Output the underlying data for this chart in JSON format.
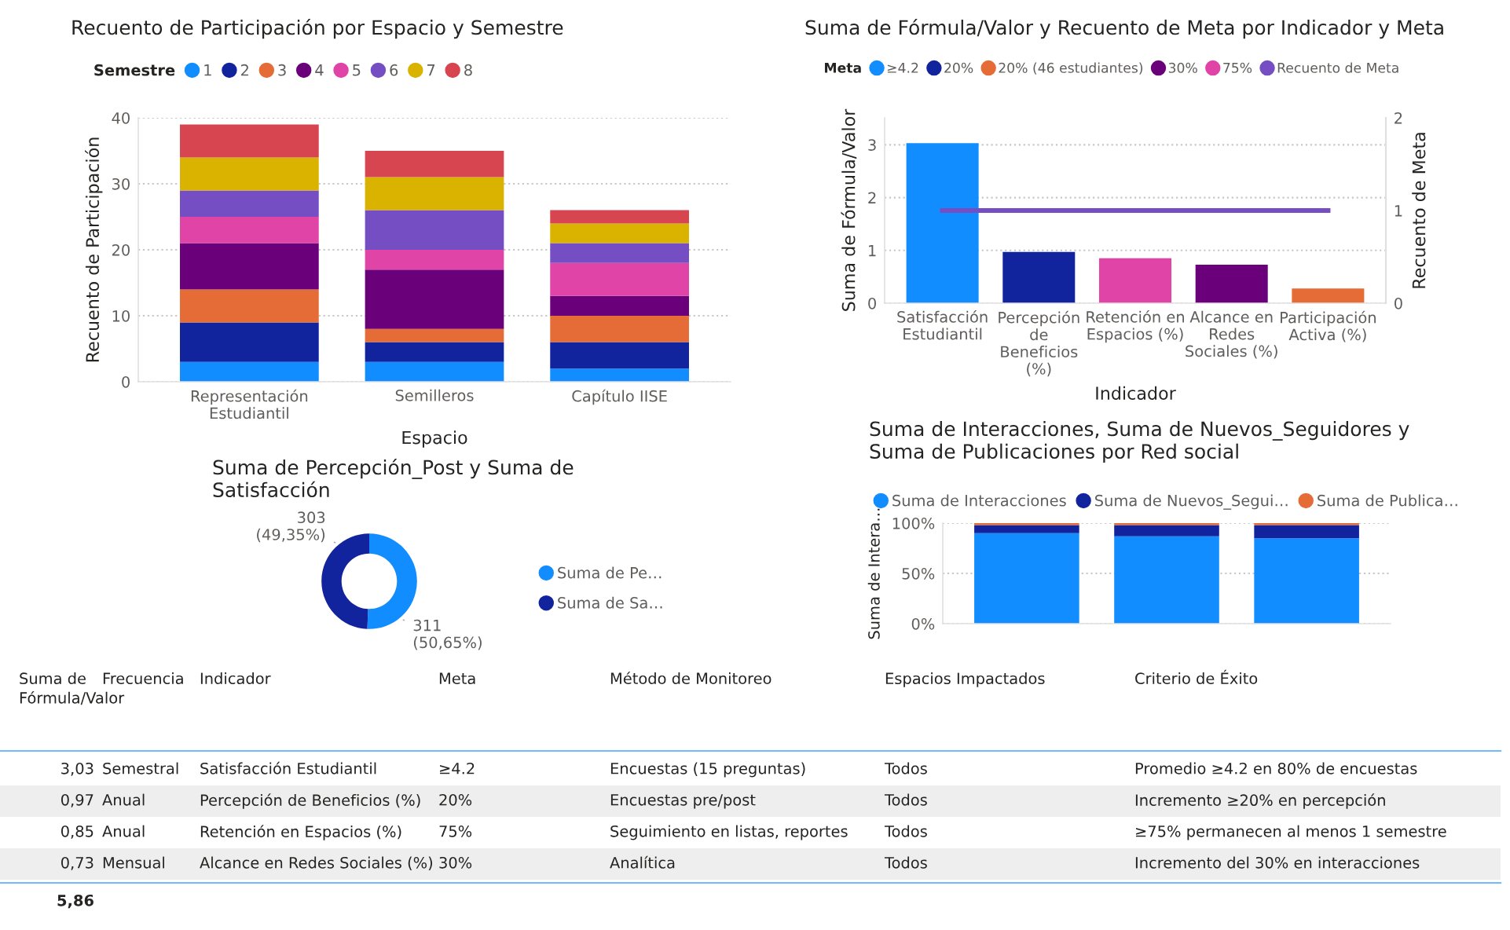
{
  "chart_data": [
    {
      "type": "bar",
      "title": "Recuento de Participación por Espacio y Semestre",
      "xlabel": "Espacio",
      "ylabel": "Recuento de Participación",
      "legend_title": "Semestre",
      "legend": "top left",
      "grid": "y",
      "stacked": true,
      "categories": [
        "Representación Estudiantil",
        "Semilleros",
        "Capítulo IISE"
      ],
      "ylim": [
        0,
        40
      ],
      "yticks": [
        0,
        10,
        20,
        30,
        40
      ],
      "series": [
        {
          "name": "1",
          "color": "#118dff",
          "values": [
            3,
            3,
            2
          ]
        },
        {
          "name": "2",
          "color": "#12239e",
          "values": [
            6,
            3,
            4
          ]
        },
        {
          "name": "3",
          "color": "#e66c37",
          "values": [
            5,
            2,
            4
          ]
        },
        {
          "name": "4",
          "color": "#6b007b",
          "values": [
            7,
            9,
            3
          ]
        },
        {
          "name": "5",
          "color": "#e044a7",
          "values": [
            4,
            3,
            5
          ]
        },
        {
          "name": "6",
          "color": "#744ec2",
          "values": [
            4,
            6,
            3
          ]
        },
        {
          "name": "7",
          "color": "#d9b300",
          "values": [
            5,
            5,
            3
          ]
        },
        {
          "name": "8",
          "color": "#d64550",
          "values": [
            5,
            4,
            2
          ]
        }
      ]
    },
    {
      "type": "bar",
      "title": "Suma de Fórmula/Valor y Recuento de Meta por Indicador y Meta",
      "xlabel": "Indicador",
      "ylabel": "Suma de Fórmula/Valor",
      "y2label": "Recuento de Meta",
      "legend_title": "Meta",
      "legend": "top left",
      "grid": "y",
      "stacked": true,
      "categories": [
        "Satisfacción Estudiantil",
        "Percepción de Beneficios (%)",
        "Retención en Espacios (%)",
        "Alcance en Redes Sociales (%)",
        "Participación Activa (%)"
      ],
      "ylim": [
        0,
        3.51
      ],
      "yticks": [
        0,
        1,
        2,
        3
      ],
      "y2lim": [
        0,
        2
      ],
      "y2ticks": [
        0,
        1,
        2
      ],
      "series": [
        {
          "name": "≥4.2",
          "color": "#118dff",
          "values": [
            3.03,
            null,
            null,
            null,
            null
          ]
        },
        {
          "name": "20%",
          "color": "#12239e",
          "values": [
            null,
            0.97,
            null,
            null,
            null
          ]
        },
        {
          "name": "20% (46 estudiantes)",
          "color": "#e66c37",
          "values": [
            null,
            null,
            null,
            null,
            0.28
          ]
        },
        {
          "name": "30%",
          "color": "#6b007b",
          "values": [
            null,
            null,
            null,
            0.73,
            null
          ]
        },
        {
          "name": "75%",
          "color": "#e044a7",
          "values": [
            null,
            null,
            0.85,
            null,
            null
          ]
        },
        {
          "name": "Recuento de Meta",
          "type": "line",
          "axis": "y2",
          "color": "#744ec2",
          "values": [
            1,
            1,
            1,
            1,
            1
          ]
        }
      ]
    },
    {
      "type": "donut",
      "title": "Suma de Percepción_Post y Suma de Satisfacción",
      "legend": "right",
      "categories": [
        "Suma de Pe…",
        "Suma de Sa…"
      ],
      "values": [
        311,
        303
      ],
      "colors": [
        "#118dff",
        "#12239e"
      ],
      "value_labels": [
        "311 (50,65%)",
        "303 (49,35%)"
      ]
    },
    {
      "type": "bar",
      "title": "Suma de Interacciones, Suma de Nuevos_Seguidores y Suma de Publicaciones por Red social",
      "ylabel": "Suma de Intera…",
      "legend": "top left",
      "grid": "y",
      "stacked": true,
      "categories": [
        null,
        null,
        null
      ],
      "ylim": [
        0,
        100
      ],
      "yticks": [
        {
          "value": 0,
          "label": "0%"
        },
        {
          "value": 50,
          "label": "50%"
        },
        {
          "value": 100,
          "label": "100%"
        }
      ],
      "series": [
        {
          "name": "Suma de Interacciones",
          "color": "#118dff",
          "values": [
            90,
            87,
            85
          ]
        },
        {
          "name": "Suma de Nuevos_Segui…",
          "color": "#12239e",
          "values": [
            8,
            11,
            13
          ]
        },
        {
          "name": "Suma de Publica…",
          "color": "#e66c37",
          "values": [
            2,
            2,
            2
          ]
        }
      ]
    },
    {
      "type": "other",
      "categories": [
        "Suma de Fórmula/Valor",
        "Frecuencia",
        "Indicador",
        "Meta",
        "Método de Monitoreo",
        "Espacios Impactados",
        "Criterio de Éxito"
      ],
      "cell_labels": [
        [
          "3,03",
          "Semestral",
          "Satisfacción Estudiantil",
          "≥4.2",
          "Encuestas (15 preguntas)",
          "Todos",
          "Promedio ≥4.2 en 80% de encuestas"
        ],
        [
          "0,97",
          "Anual",
          "Percepción de Beneficios (%)",
          "20%",
          "Encuestas pre/post",
          "Todos",
          "Incremento ≥20% en percepción"
        ],
        [
          "0,85",
          "Anual",
          "Retención en Espacios (%)",
          "75%",
          "Seguimiento en listas, reportes",
          "Todos",
          "≥75% permanecen al menos 1 semestre"
        ],
        [
          "0,73",
          "Mensual",
          "Alcance en Redes Sociales (%)",
          "30%",
          "Analítica",
          "Todos",
          "Incremento del 30% en interacciones"
        ]
      ],
      "totals": [
        "5,86"
      ]
    }
  ]
}
